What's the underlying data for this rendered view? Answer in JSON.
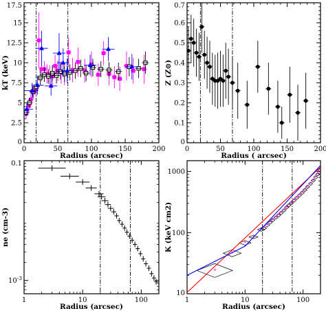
{
  "chart_data": [
    {
      "type": "scatter",
      "xlabel": "Radius (arcsec)",
      "ylabel": "kT (keV)",
      "xlim": [
        0,
        200
      ],
      "ylim": [
        0,
        17.5
      ],
      "xticks": [
        "0",
        "50",
        "100",
        "150",
        "200"
      ],
      "yticks": [
        "0",
        "2.5",
        "5",
        "7.5",
        "10",
        "12.5",
        "15",
        "17.5"
      ],
      "vlines": [
        18,
        65
      ],
      "series": [
        {
          "marker": "square",
          "color": "#ff00ff",
          "points": [
            [
              3,
              3.6,
              0.6
            ],
            [
              7,
              4.6,
              0.7
            ],
            [
              10,
              5.4,
              0.7
            ],
            [
              14,
              6.3,
              0.8
            ],
            [
              18,
              6.8,
              0.9
            ],
            [
              22,
              12.8,
              3.5
            ],
            [
              26,
              9.2,
              1.5
            ],
            [
              30,
              9.2,
              1.0
            ],
            [
              34,
              8.6,
              1.2
            ],
            [
              38,
              8.4,
              1.3
            ],
            [
              42,
              8.3,
              1.2
            ],
            [
              46,
              9.6,
              1.4
            ],
            [
              50,
              9.0,
              1.3
            ],
            [
              55,
              8.8,
              1.4
            ],
            [
              60,
              8.6,
              1.4
            ],
            [
              66,
              11.3,
              1.8
            ],
            [
              72,
              9.1,
              1.5
            ],
            [
              80,
              10.1,
              1.8
            ],
            [
              90,
              9.0,
              1.5
            ],
            [
              100,
              9.8,
              1.6
            ],
            [
              110,
              8.5,
              1.4
            ],
            [
              118,
              11.2,
              1.5
            ],
            [
              126,
              8.6,
              1.4
            ],
            [
              134,
              8.2,
              1.4
            ],
            [
              142,
              8.0,
              1.5
            ],
            [
              152,
              9.6,
              1.8
            ],
            [
              162,
              9.0,
              1.6
            ],
            [
              178,
              9.2,
              1.8
            ]
          ]
        },
        {
          "marker": "open-square",
          "color": "#000000",
          "points": [
            [
              3,
              3.8,
              0.5
            ],
            [
              8,
              5.0,
              0.6
            ],
            [
              13,
              6.4,
              0.7
            ],
            [
              18,
              7.0,
              0.8
            ],
            [
              24,
              8.1,
              0.9
            ],
            [
              30,
              8.5,
              0.9
            ],
            [
              36,
              8.3,
              0.9
            ],
            [
              42,
              8.7,
              1.0
            ],
            [
              48,
              8.4,
              1.0
            ],
            [
              54,
              8.9,
              1.0
            ],
            [
              60,
              8.6,
              1.0
            ],
            [
              68,
              8.8,
              1.0
            ],
            [
              76,
              9.0,
              1.0
            ],
            [
              84,
              9.3,
              1.1
            ],
            [
              92,
              8.7,
              1.0
            ],
            [
              102,
              9.4,
              1.1
            ],
            [
              114,
              9.2,
              1.0
            ],
            [
              126,
              9.1,
              1.0
            ],
            [
              140,
              8.9,
              1.1
            ],
            [
              156,
              9.5,
              1.2
            ],
            [
              170,
              9.3,
              1.2
            ],
            [
              180,
              10.0,
              1.4
            ]
          ]
        },
        {
          "marker": "triangle",
          "color": "#0000ff",
          "points": [
            [
              4,
              4.2,
              0.8
            ],
            [
              12,
              6.5,
              1.0
            ],
            [
              20,
              7.2,
              1.2
            ],
            [
              26,
              11.8,
              2.2
            ],
            [
              40,
              7.1,
              1.2
            ],
            [
              52,
              11.2,
              2.5
            ],
            [
              58,
              10.0,
              1.8
            ],
            [
              64,
              9.0,
              1.5
            ],
            [
              98,
              9.7,
              1.3
            ],
            [
              125,
              11.7,
              1.5
            ],
            [
              160,
              9.5,
              1.6
            ]
          ]
        }
      ]
    },
    {
      "type": "scatter",
      "xlabel": "Radius ( arcsec)",
      "ylabel": "Z (Z⊙)",
      "xlim": [
        0,
        200
      ],
      "ylim": [
        0,
        0.7
      ],
      "xticks": [
        "0",
        "50",
        "100",
        "150",
        "200"
      ],
      "yticks": [
        "0",
        "0.1",
        "0.2",
        "0.3",
        "0.4",
        "0.5",
        "0.6",
        "0.7"
      ],
      "vlines": [
        20,
        68
      ],
      "series": [
        {
          "marker": "circle",
          "color": "#000000",
          "points": [
            [
              2,
              0.46,
              0.12
            ],
            [
              6,
              0.52,
              0.12
            ],
            [
              10,
              0.5,
              0.12
            ],
            [
              14,
              0.45,
              0.12
            ],
            [
              18,
              0.43,
              0.12
            ],
            [
              22,
              0.58,
              0.13
            ],
            [
              26,
              0.44,
              0.12
            ],
            [
              30,
              0.4,
              0.13
            ],
            [
              34,
              0.38,
              0.13
            ],
            [
              38,
              0.32,
              0.13
            ],
            [
              42,
              0.31,
              0.13
            ],
            [
              46,
              0.31,
              0.14
            ],
            [
              50,
              0.32,
              0.14
            ],
            [
              54,
              0.31,
              0.13
            ],
            [
              58,
              0.36,
              0.14
            ],
            [
              62,
              0.33,
              0.14
            ],
            [
              68,
              0.3,
              0.13
            ],
            [
              76,
              0.26,
              0.14
            ],
            [
              90,
              0.19,
              0.12
            ],
            [
              106,
              0.38,
              0.13
            ],
            [
              122,
              0.27,
              0.13
            ],
            [
              136,
              0.18,
              0.13
            ],
            [
              142,
              0.1,
              0.08
            ],
            [
              154,
              0.24,
              0.14
            ],
            [
              166,
              0.15,
              0.14
            ],
            [
              178,
              0.21,
              0.14
            ]
          ]
        }
      ]
    },
    {
      "type": "scatter",
      "xscale": "log",
      "yscale": "log",
      "xlabel": "Radius (arcsec)",
      "ylabel": "ne (cm-3)",
      "xlim": [
        1,
        200
      ],
      "ylim": [
        0.0006,
        0.1
      ],
      "xticks": [
        "1",
        "10",
        "100"
      ],
      "yticks": [
        "0.1",
        "10-3"
      ],
      "vlines": [
        20,
        65
      ],
      "series": [
        {
          "marker": "cross",
          "color": "#000000",
          "points": [
            [
              3,
              0.075
            ],
            [
              6,
              0.055
            ],
            [
              10,
              0.044
            ],
            [
              14,
              0.035
            ],
            [
              19,
              0.028
            ],
            [
              21,
              0.025
            ],
            [
              24,
              0.0215
            ],
            [
              27,
              0.0185
            ],
            [
              30,
              0.016
            ],
            [
              34,
              0.014
            ],
            [
              38,
              0.012
            ],
            [
              42,
              0.01
            ],
            [
              47,
              0.0087
            ],
            [
              52,
              0.0075
            ],
            [
              57,
              0.0064
            ],
            [
              63,
              0.0055
            ],
            [
              70,
              0.0047
            ],
            [
              78,
              0.004
            ],
            [
              87,
              0.0034
            ],
            [
              97,
              0.0028
            ],
            [
              108,
              0.0023
            ],
            [
              120,
              0.0019
            ],
            [
              135,
              0.0016
            ],
            [
              150,
              0.0013
            ],
            [
              165,
              0.0011
            ],
            [
              180,
              0.00095
            ]
          ]
        }
      ]
    },
    {
      "type": "line",
      "xscale": "log",
      "yscale": "log",
      "xlabel": "Radius (arcsec)",
      "ylabel": "K (keV cm2)",
      "xlim": [
        1,
        200
      ],
      "ylim": [
        10,
        1500
      ],
      "xticks": [
        "1",
        "10",
        "100"
      ],
      "yticks": [
        "10",
        "100",
        "1000"
      ],
      "vlines": [
        20,
        65
      ],
      "series": [
        {
          "marker": "diamond",
          "color": "#ff00ff",
          "points": [
            [
              3,
              24
            ],
            [
              6,
              46
            ],
            [
              10,
              68
            ],
            [
              14,
              85
            ],
            [
              19,
              112
            ],
            [
              21,
              118
            ],
            [
              24,
              132
            ],
            [
              27,
              146
            ],
            [
              30,
              160
            ],
            [
              34,
              176
            ],
            [
              38,
              192
            ],
            [
              42,
              210
            ],
            [
              47,
              232
            ],
            [
              52,
              258
            ],
            [
              57,
              280
            ],
            [
              63,
              305
            ],
            [
              70,
              335
            ],
            [
              78,
              370
            ],
            [
              87,
              408
            ],
            [
              97,
              450
            ],
            [
              108,
              500
            ],
            [
              120,
              560
            ],
            [
              135,
              630
            ],
            [
              150,
              710
            ],
            [
              165,
              800
            ],
            [
              180,
              900
            ],
            [
              195,
              1050
            ]
          ]
        },
        {
          "style": "line",
          "color": "#ff0000",
          "points": [
            [
              1,
              10.5
            ],
            [
              200,
              1180
            ]
          ]
        },
        {
          "style": "line",
          "color": "#0000ff",
          "points": [
            [
              1,
              20
            ],
            [
              10,
              60
            ],
            [
              200,
              1250
            ]
          ]
        }
      ]
    }
  ]
}
